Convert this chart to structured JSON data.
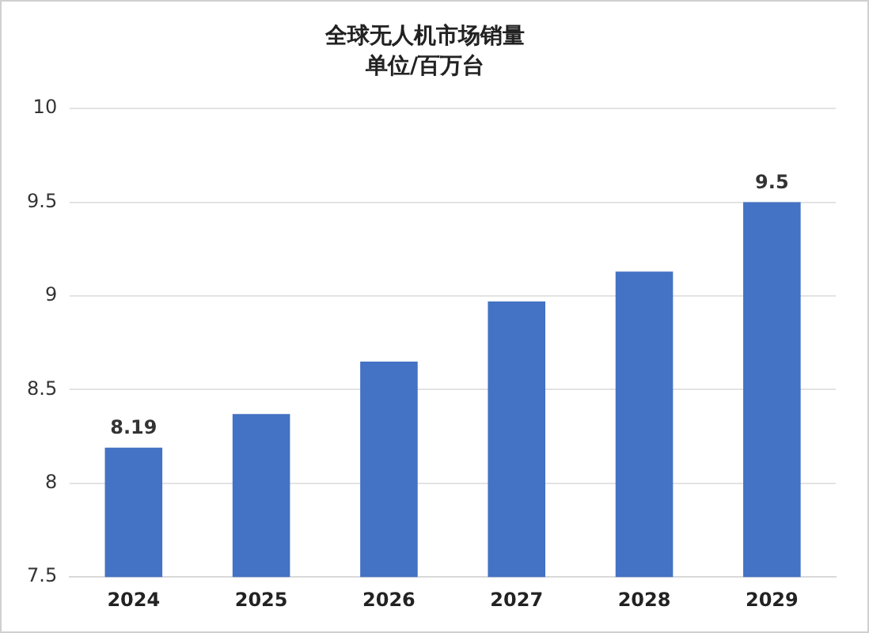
{
  "chart_data": {
    "type": "bar",
    "title": "全球无人机市场销量",
    "subtitle": "单位/百万台",
    "categories": [
      "2024",
      "2025",
      "2026",
      "2027",
      "2028",
      "2029"
    ],
    "values": [
      8.19,
      8.37,
      8.65,
      8.97,
      9.13,
      9.5
    ],
    "value_labels": [
      "8.19",
      null,
      null,
      null,
      null,
      "9.5"
    ],
    "color": "#4472c4",
    "ylim": [
      7.5,
      10
    ],
    "yticks": [
      7.5,
      8,
      8.5,
      9,
      9.5,
      10
    ],
    "grid": "y",
    "legend": false
  }
}
